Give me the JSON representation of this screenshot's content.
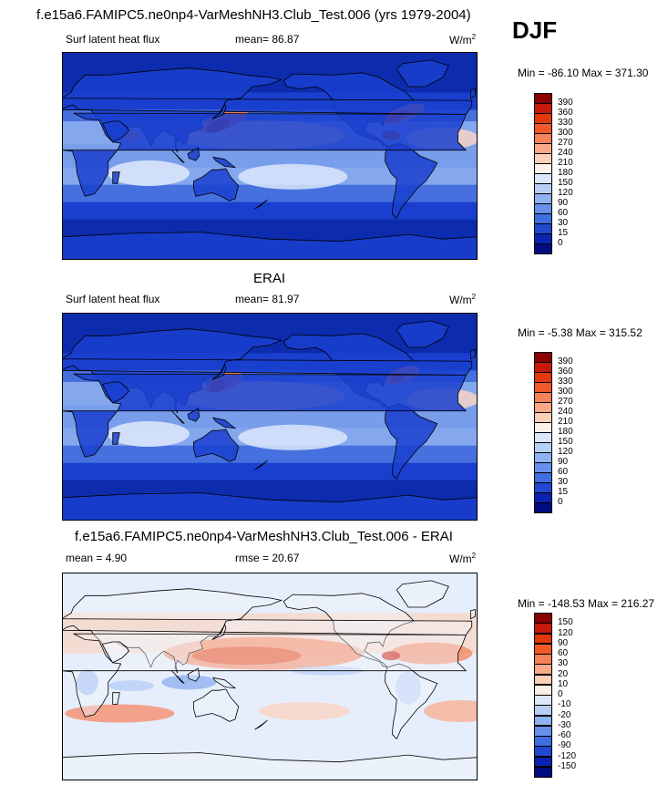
{
  "title": "f.e15a6.FAMIPC5.ne0np4-VarMeshNH3.Club_Test.006 (yrs 1979-2004)",
  "season": "DJF",
  "panels": [
    {
      "heading": "",
      "left_label": "Surf latent heat flux",
      "mid_label": "mean=  86.87",
      "unit_base": "W/m",
      "unit_exp": "2",
      "minmax": "Min = -86.10 Max = 371.30",
      "field": "model"
    },
    {
      "heading": "ERAI",
      "left_label": "Surf latent heat flux",
      "mid_label": "mean=  81.97",
      "unit_base": "W/m",
      "unit_exp": "2",
      "minmax": "Min =  -5.38 Max = 315.52",
      "field": "obs"
    },
    {
      "heading": "f.e15a6.FAMIPC5.ne0np4-VarMeshNH3.Club_Test.006 - ERAI",
      "left_label": "mean =   4.90",
      "mid_label": "rmse =  20.67",
      "unit_base": "W/m",
      "unit_exp": "2",
      "minmax": "Min = -148.53 Max = 216.27",
      "field": "diff"
    }
  ],
  "colorbars": {
    "abs": {
      "labels": [
        "390",
        "360",
        "330",
        "300",
        "270",
        "240",
        "210",
        "180",
        "150",
        "120",
        "90",
        "60",
        "30",
        "15",
        "0"
      ],
      "colors": [
        "#8b0000",
        "#c8190a",
        "#e2380e",
        "#f05a28",
        "#f6825a",
        "#f9a888",
        "#fcd0b8",
        "#fdf0e6",
        "#d9e6fb",
        "#b7cff7",
        "#8fb2f1",
        "#6690ea",
        "#3f6ee0",
        "#2148d0",
        "#0a22b0",
        "#000c80"
      ]
    },
    "diff": {
      "labels": [
        "150",
        "120",
        "90",
        "60",
        "30",
        "20",
        "10",
        "0",
        "-10",
        "-20",
        "-30",
        "-60",
        "-90",
        "-120",
        "-150"
      ],
      "colors": [
        "#8b0000",
        "#c8190a",
        "#e2380e",
        "#f05a28",
        "#f6825a",
        "#f9a888",
        "#fcd0b8",
        "#fdeee4",
        "#dbe8fb",
        "#b7cff7",
        "#8fb2f1",
        "#6690ea",
        "#3f6ee0",
        "#2148d0",
        "#0a22b0",
        "#000c80"
      ]
    }
  },
  "chart_data": {
    "type": "heatmap",
    "title": "f.e15a6.FAMIPC5.ne0np4-VarMeshNH3.Club_Test.006 (yrs 1979-2004)",
    "season": "DJF",
    "panels": [
      {
        "name": "model",
        "variable": "Surf latent heat flux",
        "units": "W/m2",
        "mean": 86.87,
        "min": -86.1,
        "max": 371.3,
        "levels": [
          0,
          15,
          30,
          60,
          90,
          120,
          150,
          180,
          210,
          240,
          270,
          300,
          330,
          360,
          390
        ]
      },
      {
        "name": "ERAI",
        "variable": "Surf latent heat flux",
        "units": "W/m2",
        "mean": 81.97,
        "min": -5.38,
        "max": 315.52,
        "levels": [
          0,
          15,
          30,
          60,
          90,
          120,
          150,
          180,
          210,
          240,
          270,
          300,
          330,
          360,
          390
        ]
      },
      {
        "name": "f.e15a6.FAMIPC5.ne0np4-VarMeshNH3.Club_Test.006 - ERAI",
        "units": "W/m2",
        "mean": 4.9,
        "rmse": 20.67,
        "min": -148.53,
        "max": 216.27,
        "levels": [
          -150,
          -120,
          -90,
          -60,
          -30,
          -20,
          -10,
          0,
          10,
          20,
          30,
          60,
          90,
          120,
          150
        ]
      }
    ]
  }
}
